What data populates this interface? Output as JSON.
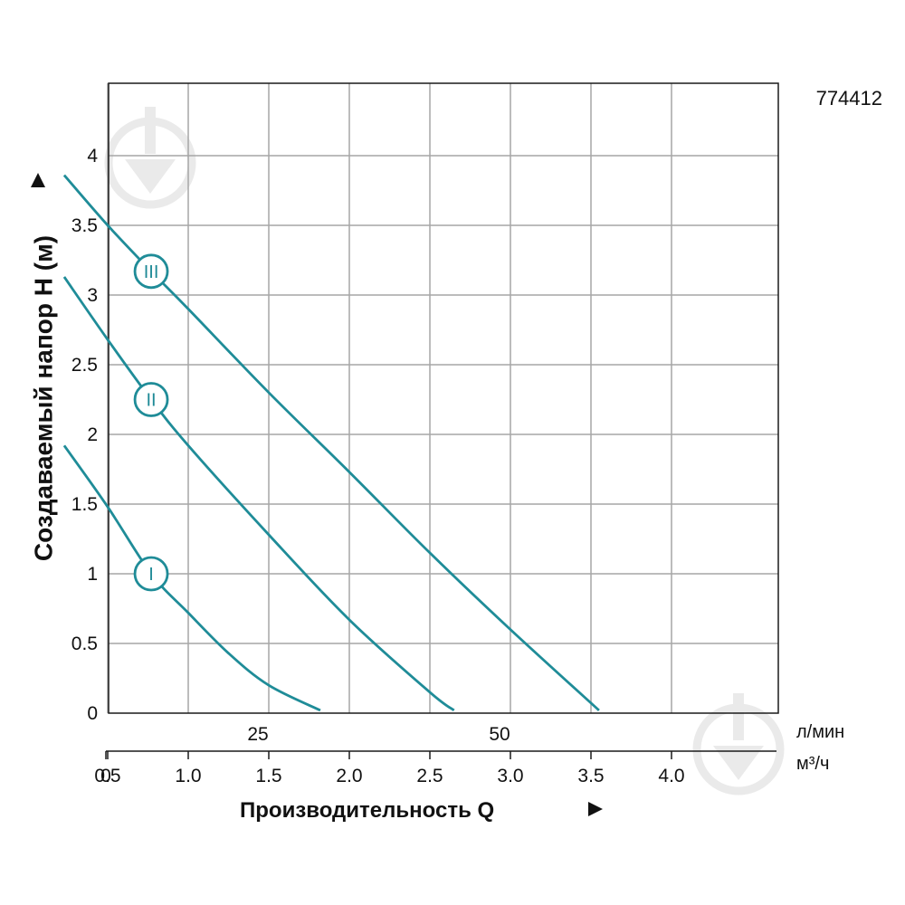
{
  "model_code": "774412",
  "colors": {
    "curve": "#1f8c98",
    "grid": "#a6a6a6",
    "text": "#111111",
    "watermark": "#e9e9e9"
  },
  "watermark_icon": "drop-logo-icon",
  "chart_data": {
    "type": "line",
    "title": "",
    "xlabel": "Производительность Q",
    "ylabel": "Создаваемый напор H (м)",
    "xlim": [
      0,
      4.2
    ],
    "ylim": [
      0,
      4.5
    ],
    "x_ticks": [
      "0",
      "0.5",
      "1.0",
      "1.5",
      "2.0",
      "2.5",
      "3.0",
      "3.5",
      "4.0"
    ],
    "x_tick_values": [
      0,
      0.5,
      1.0,
      1.5,
      2.0,
      2.5,
      3.0,
      3.5,
      4.0
    ],
    "x_unit": "м³/ч",
    "secondary_x_ticks": [
      "25",
      "50"
    ],
    "secondary_x_tick_values": [
      1.5,
      3.0
    ],
    "secondary_x_unit": "л/мин",
    "y_ticks": [
      "0",
      "0.5",
      "1",
      "1.5",
      "2",
      "2.5",
      "3",
      "3.5",
      "4"
    ],
    "y_tick_values": [
      0,
      0.5,
      1,
      1.5,
      2,
      2.5,
      3,
      3.5,
      4
    ],
    "grid": true,
    "series": [
      {
        "name": "I",
        "marker_at": [
          0.77,
          1.0
        ],
        "x": [
          0.23,
          0.5,
          0.77,
          1.0,
          1.25,
          1.5,
          1.82
        ],
        "y": [
          1.92,
          1.48,
          1.0,
          0.72,
          0.43,
          0.2,
          0.02
        ]
      },
      {
        "name": "II",
        "marker_at": [
          0.77,
          2.25
        ],
        "x": [
          0.23,
          0.5,
          0.77,
          1.0,
          1.5,
          2.0,
          2.5,
          2.65
        ],
        "y": [
          3.13,
          2.68,
          2.25,
          1.92,
          1.28,
          0.67,
          0.15,
          0.02
        ]
      },
      {
        "name": "III",
        "marker_at": [
          0.77,
          3.17
        ],
        "x": [
          0.23,
          0.5,
          0.77,
          1.0,
          1.5,
          2.0,
          2.5,
          3.0,
          3.55
        ],
        "y": [
          3.86,
          3.5,
          3.17,
          2.9,
          2.3,
          1.73,
          1.15,
          0.6,
          0.02
        ]
      }
    ]
  }
}
